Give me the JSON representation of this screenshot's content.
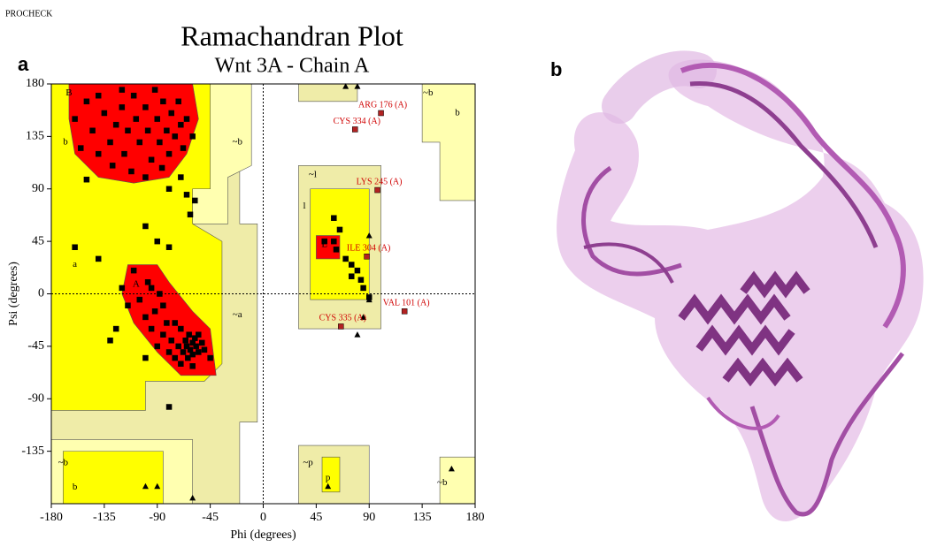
{
  "header": "PROCHECK",
  "panel_labels": [
    "a",
    "b"
  ],
  "chart_data": {
    "type": "scatter",
    "title": "Ramachandran Plot",
    "subtitle": "Wnt  3A - Chain A",
    "x_label": "Phi (degrees)",
    "y_label": "Psi (degrees)",
    "xlim": [
      -180,
      180
    ],
    "ylim": [
      -180,
      180
    ],
    "xticks": [
      -180,
      -135,
      -90,
      -45,
      0,
      45,
      90,
      135,
      180
    ],
    "yticks": [
      -135,
      -90,
      -45,
      0,
      45,
      90,
      135,
      180
    ],
    "region_labels": [
      "B",
      "b",
      "~b",
      "~l",
      "l",
      "L",
      "a",
      "A",
      "~a",
      "~b",
      "b",
      "~p",
      "p",
      "~b",
      "b",
      "~b"
    ],
    "series": [
      {
        "marker": "square",
        "color": "#000000",
        "x": [
          -160,
          -150,
          -145,
          -140,
          -135,
          -130,
          -125,
          -120,
          -118,
          -115,
          -110,
          -108,
          -105,
          -100,
          -98,
          -95,
          -92,
          -90,
          -88,
          -85,
          -82,
          -80,
          -78,
          -75,
          -72,
          -70,
          -68,
          -65,
          -60,
          -155,
          -140,
          -128,
          -112,
          -100,
          -86,
          -120,
          -70,
          -65,
          -58,
          -62,
          -80,
          -150,
          -160,
          -140,
          -100,
          -90,
          -80,
          -120,
          -115,
          -110,
          -105,
          -100,
          -98,
          -95,
          -92,
          -90,
          -88,
          -85,
          -82,
          -80,
          -78,
          -75,
          -72,
          -70,
          -68,
          -66,
          -65,
          -64,
          -63,
          -62,
          -60,
          -60,
          -58,
          -57,
          -55,
          -55,
          -52,
          -50,
          -70,
          -60,
          -75,
          -85,
          -95,
          -100,
          -125,
          -45,
          -130,
          60,
          60,
          62,
          70,
          75,
          80,
          83,
          85,
          90,
          75,
          65,
          52,
          -80
        ],
        "values": [
          150,
          165,
          140,
          170,
          155,
          130,
          145,
          160,
          120,
          140,
          170,
          150,
          130,
          160,
          140,
          115,
          175,
          150,
          130,
          165,
          140,
          120,
          155,
          135,
          165,
          145,
          125,
          150,
          135,
          125,
          120,
          110,
          105,
          100,
          108,
          175,
          100,
          85,
          80,
          68,
          90,
          98,
          40,
          30,
          58,
          45,
          40,
          5,
          -10,
          20,
          -5,
          -20,
          10,
          -30,
          -15,
          -45,
          0,
          -35,
          -25,
          -50,
          -40,
          -55,
          -45,
          -30,
          -50,
          -40,
          -45,
          -55,
          -35,
          -48,
          -42,
          -52,
          -38,
          -45,
          -50,
          -35,
          -42,
          -48,
          -60,
          -62,
          -25,
          -10,
          5,
          -55,
          -30,
          -55,
          -40,
          65,
          45,
          38,
          30,
          15,
          20,
          12,
          5,
          -3,
          25,
          55,
          45,
          -97
        ]
      },
      {
        "marker": "triangle",
        "color": "#000000",
        "x": [
          -100,
          -90,
          70,
          80,
          90,
          90,
          85,
          80,
          55,
          160,
          -60
        ],
        "values": [
          -165,
          -165,
          178,
          178,
          50,
          -5,
          -20,
          -35,
          -165,
          -150,
          -175
        ]
      },
      {
        "marker": "square",
        "color": "#b22222",
        "x": [
          100,
          78,
          97,
          88,
          120,
          66
        ],
        "values": [
          155,
          141,
          89,
          32,
          -15,
          -28
        ],
        "labels": [
          "ARG 176 (A)",
          "CYS 334 (A)",
          "LYS 245 (A)",
          "ILE 304 (A)",
          "VAL 101 (A)",
          "CYS 335 (A)"
        ]
      }
    ]
  }
}
